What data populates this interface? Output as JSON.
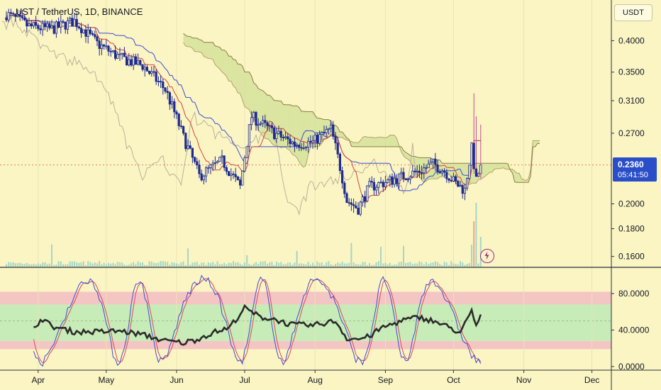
{
  "header": {
    "symbol_line": "UST / TetherUS, 1D, BINANCE",
    "currency_button": "USDT"
  },
  "price_tag": {
    "price": "0.2360",
    "countdown": "05:41:50"
  },
  "colors": {
    "background": "#fbf5c4",
    "up": "#1e2a8f",
    "down": "#1e2a8f",
    "tenkan": "#d9423c",
    "kijun": "#3b4bd6",
    "cloud": "#d3e29a",
    "lagging": "#b9b19a",
    "volume": "#8fd0c4",
    "stoch_k": "#3b4bd6",
    "stoch_d": "#e0455a",
    "rsi": "#2b2b2b",
    "band_green": "#c7ecb8",
    "band_red": "#f3c6c4",
    "accent": "#2a4ec7",
    "bolt_icon": "#a0288c"
  },
  "chart_data": {
    "type": "candlestick",
    "price_axis": {
      "ticks": [
        "0.4000",
        "0.3500",
        "0.3100",
        "0.2700",
        "0.2000",
        "0.1800",
        "0.1600"
      ],
      "tick_values": [
        0.4,
        0.35,
        0.31,
        0.27,
        0.2,
        0.18,
        0.16
      ],
      "scale": "log"
    },
    "osc_axis": {
      "ticks": [
        "80.0000",
        "40.0000",
        "0.0000"
      ],
      "tick_values": [
        80,
        40,
        0
      ],
      "range": [
        -4,
        108
      ]
    },
    "x_ticks": [
      {
        "label": "Apr",
        "day": 14
      },
      {
        "label": "May",
        "day": 44
      },
      {
        "label": "Jun",
        "day": 75
      },
      {
        "label": "Jul",
        "day": 105
      },
      {
        "label": "Aug",
        "day": 136
      },
      {
        "label": "Sep",
        "day": 167
      },
      {
        "label": "Oct",
        "day": 197
      },
      {
        "label": "Nov",
        "day": 228
      },
      {
        "label": "Dec",
        "day": 258
      }
    ],
    "last_price": 0.236,
    "close_anchors": [
      [
        0,
        0.448
      ],
      [
        10,
        0.425
      ],
      [
        20,
        0.42
      ],
      [
        30,
        0.435
      ],
      [
        40,
        0.395
      ],
      [
        50,
        0.372
      ],
      [
        60,
        0.36
      ],
      [
        70,
        0.325
      ],
      [
        78,
        0.265
      ],
      [
        85,
        0.225
      ],
      [
        95,
        0.24
      ],
      [
        103,
        0.215
      ],
      [
        108,
        0.29
      ],
      [
        118,
        0.27
      ],
      [
        127,
        0.258
      ],
      [
        135,
        0.26
      ],
      [
        143,
        0.275
      ],
      [
        150,
        0.203
      ],
      [
        155,
        0.196
      ],
      [
        160,
        0.215
      ],
      [
        168,
        0.22
      ],
      [
        175,
        0.225
      ],
      [
        182,
        0.23
      ],
      [
        188,
        0.237
      ],
      [
        193,
        0.23
      ],
      [
        198,
        0.218
      ],
      [
        202,
        0.212
      ],
      [
        205,
        0.253
      ],
      [
        207,
        0.22
      ],
      [
        209,
        0.236
      ]
    ],
    "rsi_anchors": [
      [
        0,
        33
      ],
      [
        10,
        40
      ],
      [
        16,
        52
      ],
      [
        20,
        44
      ],
      [
        30,
        38
      ],
      [
        40,
        38
      ],
      [
        50,
        39
      ],
      [
        60,
        35
      ],
      [
        70,
        28
      ],
      [
        78,
        26
      ],
      [
        83,
        29
      ],
      [
        92,
        38
      ],
      [
        98,
        42
      ],
      [
        105,
        64
      ],
      [
        112,
        54
      ],
      [
        118,
        52
      ],
      [
        125,
        46
      ],
      [
        135,
        45
      ],
      [
        145,
        50
      ],
      [
        150,
        31
      ],
      [
        155,
        30
      ],
      [
        160,
        33
      ],
      [
        165,
        42
      ],
      [
        175,
        51
      ],
      [
        182,
        54
      ],
      [
        188,
        50
      ],
      [
        195,
        43
      ],
      [
        200,
        37
      ],
      [
        205,
        60
      ],
      [
        207,
        44
      ],
      [
        209,
        57
      ]
    ],
    "osc_bands": {
      "red": [
        [
          68,
          82
        ],
        [
          19,
          28
        ]
      ],
      "green": [
        28,
        68
      ],
      "mid": 50
    }
  }
}
